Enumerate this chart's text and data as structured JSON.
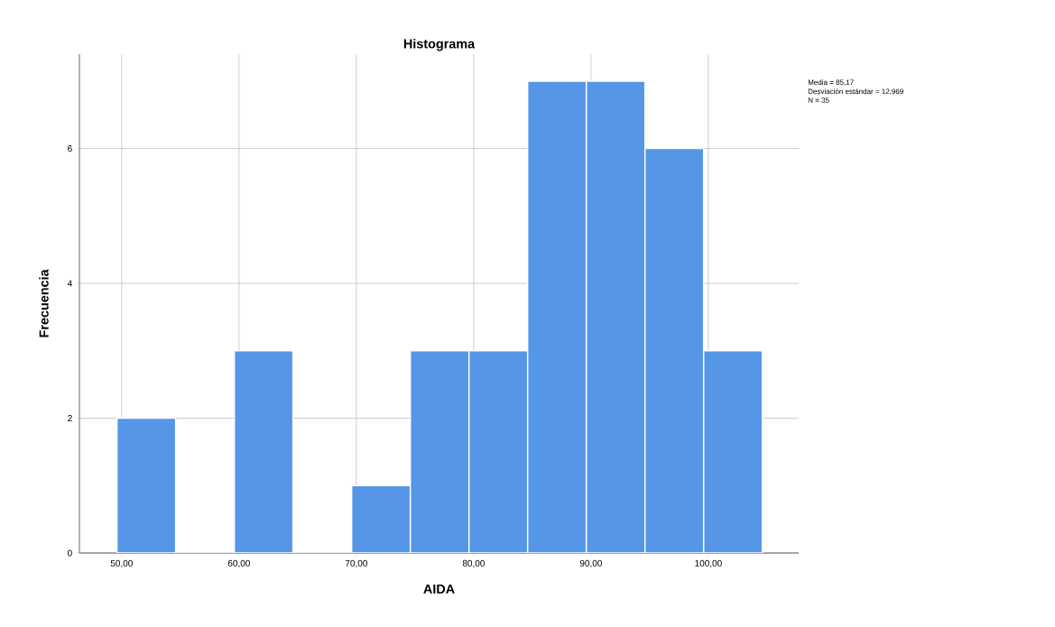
{
  "chart_data": {
    "type": "histogram",
    "title": "Histograma",
    "xlabel": "AIDA",
    "ylabel": "Frecuencia",
    "bins": [
      49.6,
      54.6,
      59.6,
      64.6,
      69.6,
      74.6,
      79.6,
      84.6,
      89.6,
      94.6,
      99.6,
      104.6
    ],
    "values": [
      2,
      0,
      3,
      0,
      1,
      3,
      3,
      7,
      7,
      6,
      3
    ],
    "color": "#5596e6",
    "xlim": [
      46.4,
      107.7
    ],
    "ylim": [
      0,
      7.4
    ],
    "xticks": [
      {
        "value": 50,
        "label": "50,00"
      },
      {
        "value": 60,
        "label": "60,00"
      },
      {
        "value": 70,
        "label": "70,00"
      },
      {
        "value": 80,
        "label": "80,00"
      },
      {
        "value": 90,
        "label": "90,00"
      },
      {
        "value": 100,
        "label": "100,00"
      }
    ],
    "yticks": [
      0,
      2,
      4,
      6
    ],
    "grid": true,
    "annotations": [
      "Media = 85,17",
      "Desviación estándar = 12,969",
      "N = 35"
    ]
  }
}
